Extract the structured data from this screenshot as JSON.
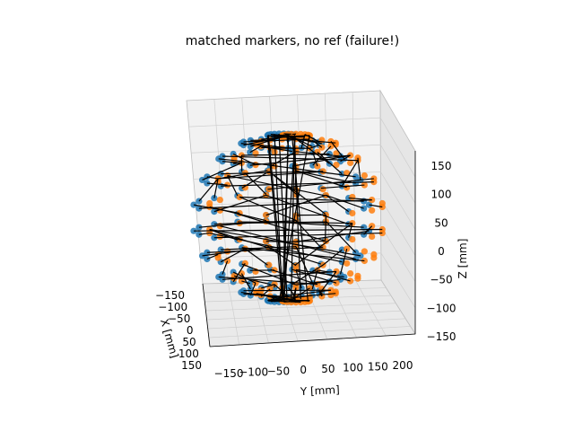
{
  "chart_data": {
    "type": "scatter",
    "title": "matched markers, no ref (failure!)",
    "xlabel": "X [mm]",
    "ylabel": "Y [mm]",
    "zlabel": "Z [mm]",
    "x_ticks": [
      "−150",
      "−100",
      "−50",
      "0",
      "50",
      "100",
      "150"
    ],
    "y_ticks": [
      "−150",
      "−100",
      "−50",
      "0",
      "50",
      "100",
      "150",
      "200"
    ],
    "z_ticks": [
      "150",
      "100",
      "50",
      "0",
      "−50",
      "−100",
      "−150"
    ],
    "xlim": [
      -150,
      150
    ],
    "ylim": [
      -150,
      200
    ],
    "zlim": [
      -150,
      150
    ],
    "grid": true,
    "series": [
      {
        "color": "#1f77b4",
        "shape": "sphere",
        "center": [
          0,
          25,
          0
        ],
        "radius": 150,
        "rings": 10,
        "points_per_ring": 18,
        "azimuth_offset_deg": 0
      },
      {
        "color": "#ff7f0e",
        "shape": "sphere",
        "center": [
          0,
          0,
          0
        ],
        "radius": 150,
        "rings": 10,
        "points_per_ring": 18,
        "azimuth_offset_deg": 10
      }
    ],
    "match_lines": {
      "color": "#000000",
      "description": "black segments connecting matched markers between the two sets"
    }
  }
}
